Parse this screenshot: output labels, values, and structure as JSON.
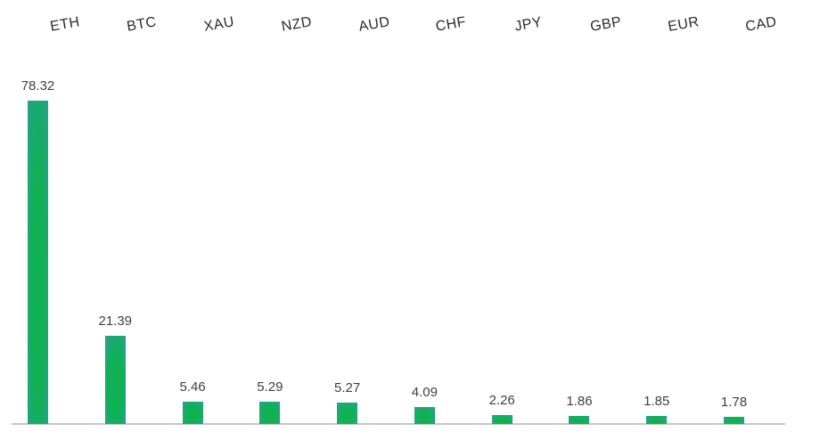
{
  "chart_data": {
    "type": "bar",
    "title": "",
    "xlabel": "",
    "ylabel": "",
    "categories": [
      "ETH",
      "BTC",
      "XAU",
      "NZD",
      "AUD",
      "CHF",
      "JPY",
      "GBP",
      "EUR",
      "CAD"
    ],
    "values": [
      78.32,
      21.39,
      5.46,
      5.29,
      5.27,
      4.09,
      2.26,
      1.86,
      1.85,
      1.78
    ],
    "data_labels": [
      "78.32",
      "21.39",
      "5.46",
      "5.29",
      "5.27",
      "4.09",
      "2.26",
      "1.86",
      "1.85",
      "1.78"
    ],
    "ylim": [
      0,
      80
    ],
    "grid": false,
    "legend_position": "none",
    "category_labels_position": "top",
    "category_label_rotation_deg": -10,
    "colors": {
      "bar_center": "#0fb153",
      "bar_edge": "#2f9e8c",
      "axis_line": "#c6c6c6",
      "category_label": "#2b2b2b",
      "value_label": "#404040",
      "background": "#ffffff"
    }
  }
}
